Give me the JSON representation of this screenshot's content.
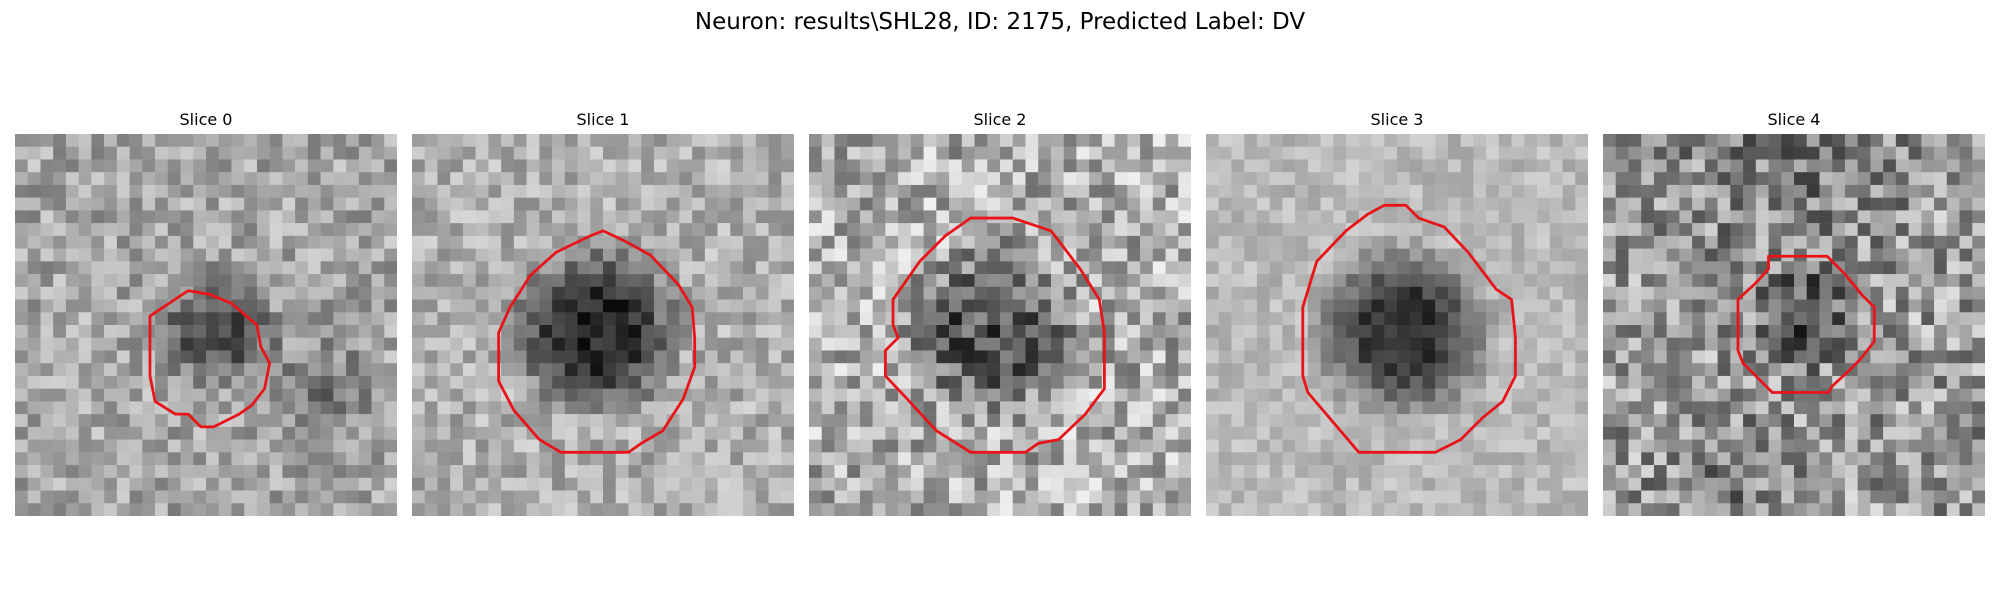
{
  "figure": {
    "title": "Neuron: results\\SHL28, ID: 2175, Predicted Label: DV"
  },
  "colors": {
    "roi_outline": "#e8141a",
    "background": "#ffffff"
  },
  "panels": [
    {
      "title": "Slice 0"
    },
    {
      "title": "Slice 1"
    },
    {
      "title": "Slice 2"
    },
    {
      "title": "Slice 3"
    },
    {
      "title": "Slice 4"
    }
  ]
}
